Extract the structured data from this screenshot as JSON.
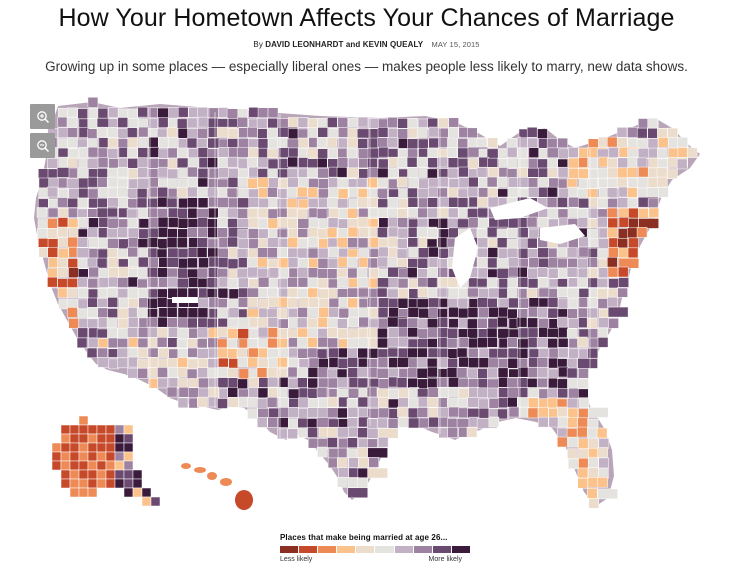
{
  "header": {
    "title": "How Your Hometown Affects Your Chances of Marriage",
    "byline_prefix": "By",
    "authors": "DAVID LEONHARDT and KEVIN QUEALY",
    "date": "MAY 15, 2015",
    "subtitle": "Growing up in some places — especially liberal ones — makes people less likely to marry, new data shows."
  },
  "controls": {
    "zoom_in_icon": "zoom-in-icon",
    "zoom_out_icon": "zoom-out-icon",
    "button_color": "#9a9a9a"
  },
  "map": {
    "subject": "US counties shaded by effect of childhood location on being married at age 26",
    "regions": [
      "contiguous-us",
      "alaska",
      "hawaii"
    ],
    "stroke_color": "#ffffff",
    "land_default": "#b9a5b8"
  },
  "legend": {
    "title": "Places that make being married at age 26...",
    "low_label": "Less likely",
    "high_label": "More likely",
    "colors": [
      "#8a2f21",
      "#c6492a",
      "#ee8a55",
      "#fcc28c",
      "#ecdccc",
      "#e4e3df",
      "#c2b0c4",
      "#9e82a1",
      "#6a4a70",
      "#3a1b3c"
    ]
  }
}
